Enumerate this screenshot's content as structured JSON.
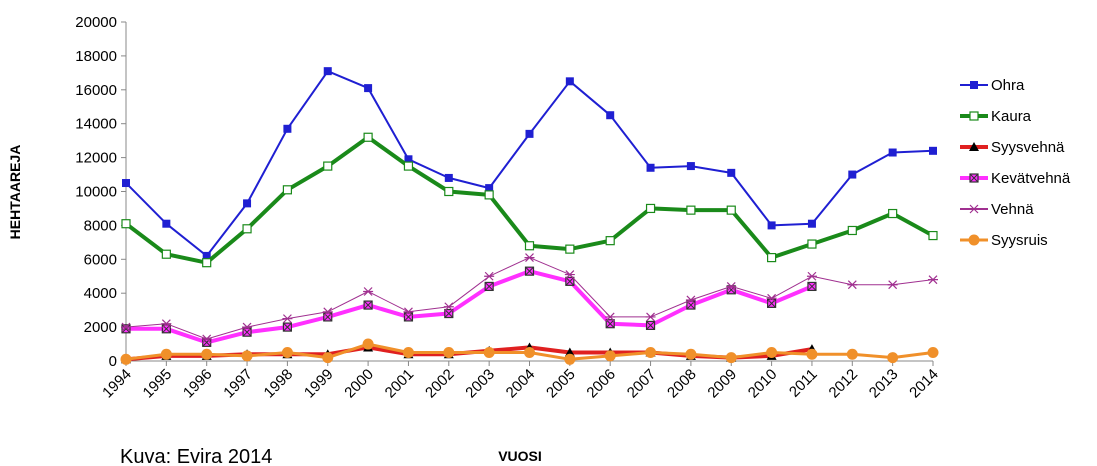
{
  "chart_data": {
    "type": "line",
    "title": "",
    "xlabel": "VUOSI",
    "ylabel": "HEHTAAREJA",
    "caption": "Kuva: Evira 2014",
    "ylim": [
      0,
      20000
    ],
    "yticks": [
      0,
      2000,
      4000,
      6000,
      8000,
      10000,
      12000,
      14000,
      16000,
      18000,
      20000
    ],
    "grid": false,
    "legend": "right",
    "categories": [
      "1994",
      "1995",
      "1996",
      "1997",
      "1998",
      "1999",
      "2000",
      "2001",
      "2002",
      "2003",
      "2004",
      "2005",
      "2006",
      "2007",
      "2008",
      "2009",
      "2010",
      "2011",
      "2012",
      "2013",
      "2014"
    ],
    "series": [
      {
        "name": "Ohra",
        "color": "#1f1fd2",
        "marker": "filled-square",
        "line_width": 2,
        "values": [
          10500,
          8100,
          6200,
          9300,
          13700,
          17100,
          16100,
          11900,
          10800,
          10200,
          13400,
          16500,
          14500,
          11400,
          11500,
          11100,
          8000,
          8100,
          11000,
          12300,
          12400
        ]
      },
      {
        "name": "Kaura",
        "color": "#1a8a1a",
        "marker": "open-square",
        "line_width": 4,
        "values": [
          8100,
          6300,
          5800,
          7800,
          10100,
          11500,
          13200,
          11500,
          10000,
          9800,
          6800,
          6600,
          7100,
          9000,
          8900,
          8900,
          6100,
          6900,
          7700,
          8700,
          7400
        ]
      },
      {
        "name": "Syysvehnä",
        "color": "#e02020",
        "marker": "filled-triangle",
        "line_width": 4,
        "values": [
          100,
          300,
          300,
          400,
          400,
          400,
          800,
          400,
          400,
          600,
          800,
          500,
          500,
          500,
          300,
          200,
          300,
          700,
          null,
          null,
          null
        ]
      },
      {
        "name": "Kevätvehnä",
        "color": "#ff30ff",
        "marker": "hatched-square",
        "line_width": 4,
        "values": [
          1900,
          1900,
          1100,
          1700,
          2000,
          2600,
          3300,
          2600,
          2800,
          4400,
          5300,
          4700,
          2200,
          2100,
          3300,
          4200,
          3400,
          4400,
          null,
          null,
          null
        ]
      },
      {
        "name": "Vehnä",
        "color": "#a03090",
        "marker": "star",
        "line_width": 1,
        "values": [
          2000,
          2200,
          1300,
          2000,
          2500,
          2900,
          4100,
          2900,
          3200,
          5000,
          6100,
          5100,
          2600,
          2600,
          3600,
          4400,
          3700,
          5000,
          4500,
          4500,
          4800
        ]
      },
      {
        "name": "Syysruis",
        "color": "#f0902a",
        "marker": "circle",
        "line_width": 3,
        "values": [
          100,
          400,
          400,
          300,
          500,
          200,
          1000,
          500,
          500,
          500,
          500,
          100,
          300,
          500,
          400,
          200,
          500,
          400,
          400,
          200,
          500
        ]
      }
    ]
  }
}
